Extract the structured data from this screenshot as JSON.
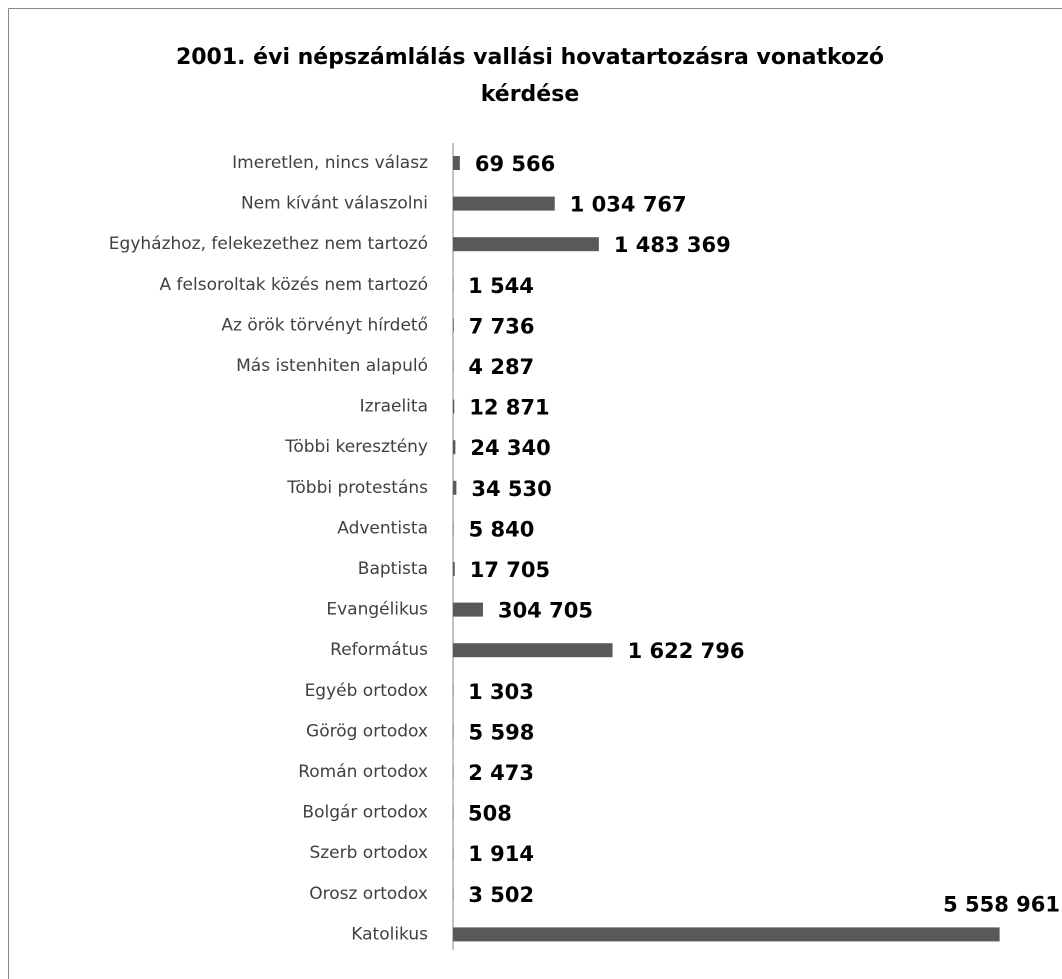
{
  "chart_data": {
    "type": "bar",
    "orientation": "horizontal",
    "title": "2001. évi népszámlálás vallási hovatartozásra vonatkozó kérdése",
    "categories": [
      "Imeretlen, nincs válasz",
      "Nem kívánt válaszolni",
      "Egyházhoz, felekezethez nem tartozó",
      "A felsoroltak közés nem tartozó",
      "Az örök törvényt hírdető",
      "Más istenhiten alapuló",
      "Izraelita",
      "Többi keresztény",
      "Többi protestáns",
      "Adventista",
      "Baptista",
      "Evangélikus",
      "Református",
      "Egyéb ortodox",
      "Görög ortodox",
      "Román ortodox",
      "Bolgár ortodox",
      "Szerb ortodox",
      "Orosz ortodox",
      "Katolikus"
    ],
    "values": [
      69566,
      1034767,
      1483369,
      1544,
      7736,
      4287,
      12871,
      24340,
      34530,
      5840,
      17705,
      304705,
      1622796,
      1303,
      5598,
      2473,
      508,
      1914,
      3502,
      5558961
    ],
    "value_labels": [
      "69 566",
      "1 034 767",
      "1 483 369",
      "1 544",
      "7 736",
      "4 287",
      "12 871",
      "24 340",
      "34 530",
      "5 840",
      "17 705",
      "304 705",
      "1 622 796",
      "1 303",
      "5 598",
      "2 473",
      "508",
      "1 914",
      "3 502",
      "5 558 961"
    ],
    "color": "#595959",
    "xlim": [
      0,
      6000000
    ]
  }
}
